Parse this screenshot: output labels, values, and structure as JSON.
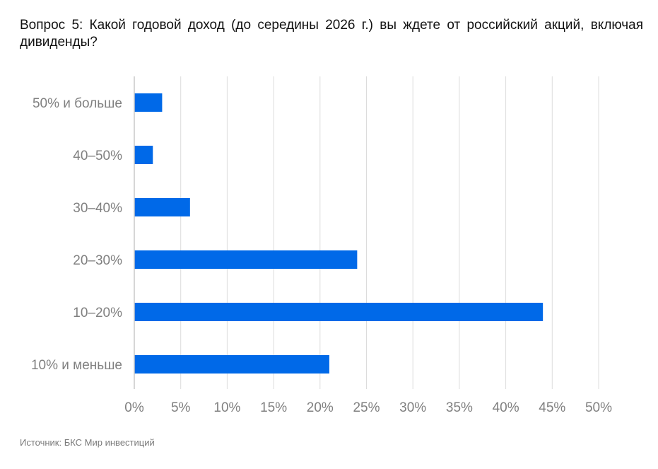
{
  "chart_data": {
    "type": "bar",
    "orientation": "horizontal",
    "title": "Вопрос 5: Какой годовой доход (до середины 2026 г.) вы ждете от российский акций, включая дивиденды?",
    "source": "Источник: БКС Мир инвестиций",
    "categories": [
      "50% и больше",
      "40–50%",
      "30–40%",
      "20–30%",
      "10–20%",
      "10% и меньше"
    ],
    "values": [
      3,
      2,
      6,
      24,
      44,
      21
    ],
    "xlim": [
      0,
      50
    ],
    "xticks": [
      0,
      5,
      10,
      15,
      20,
      25,
      30,
      35,
      40,
      45,
      50
    ],
    "tick_suffix": "%",
    "grid": true,
    "bar_color": "#0069e8",
    "grid_color": "#dcdcdc",
    "axis_color": "#c8c8c8"
  }
}
